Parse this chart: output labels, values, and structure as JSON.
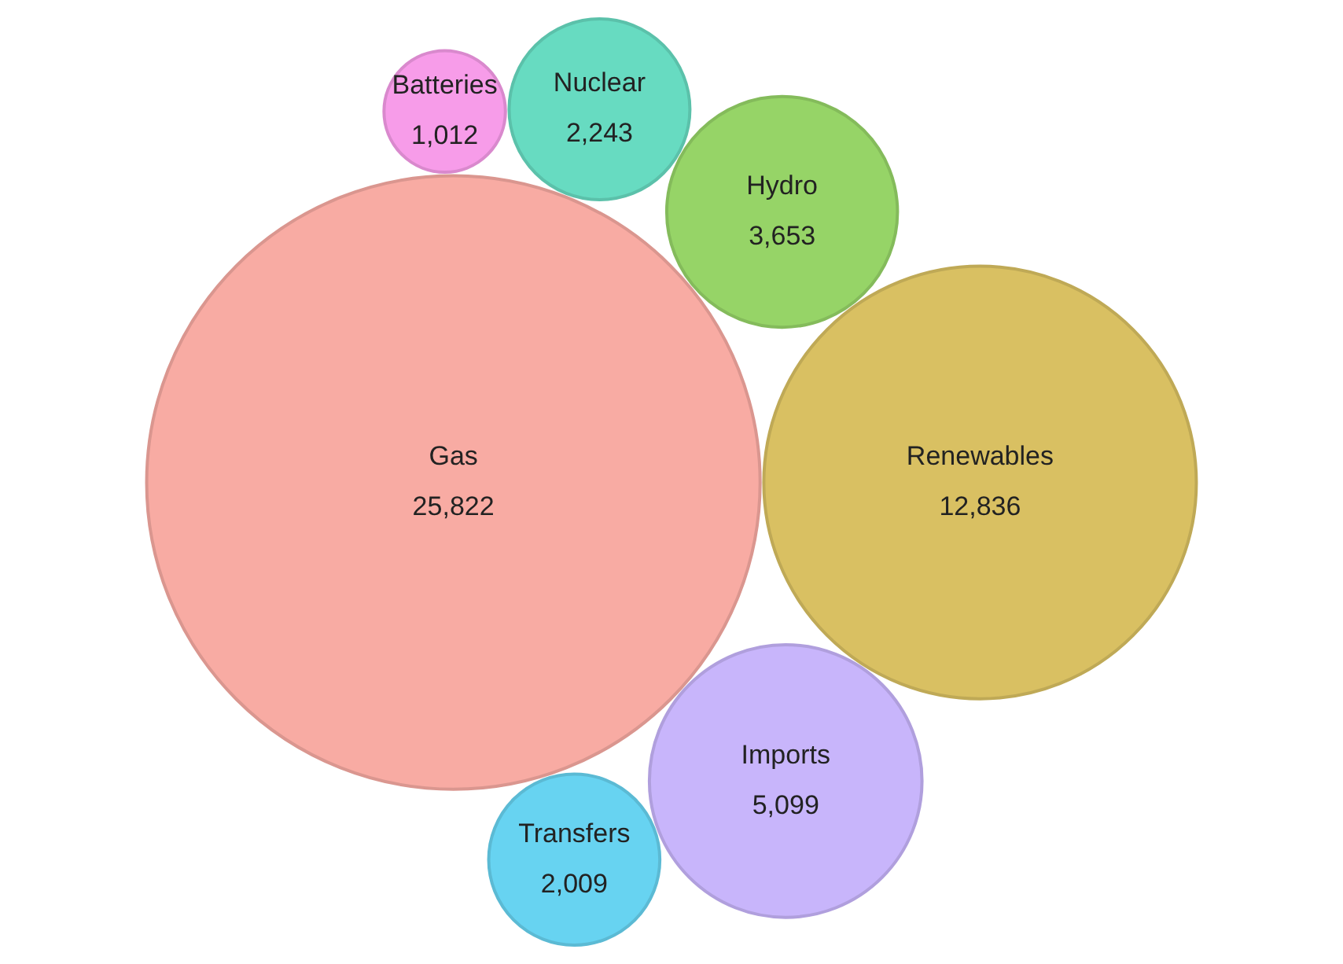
{
  "chart_data": {
    "type": "other",
    "categories": [
      "Gas",
      "Renewables",
      "Imports",
      "Hydro",
      "Nuclear",
      "Transfers",
      "Batteries"
    ],
    "values": [
      25822,
      12836,
      5099,
      3653,
      2243,
      2009,
      1012
    ],
    "colors": [
      "#f8aba3",
      "#d9c062",
      "#c8b5fb",
      "#96d467",
      "#67dbc1",
      "#67d3f1",
      "#f79ce9"
    ],
    "value_labels": [
      "25,822",
      "12,836",
      "5,099",
      "3,653",
      "2,243",
      "2,009",
      "1,012"
    ]
  }
}
